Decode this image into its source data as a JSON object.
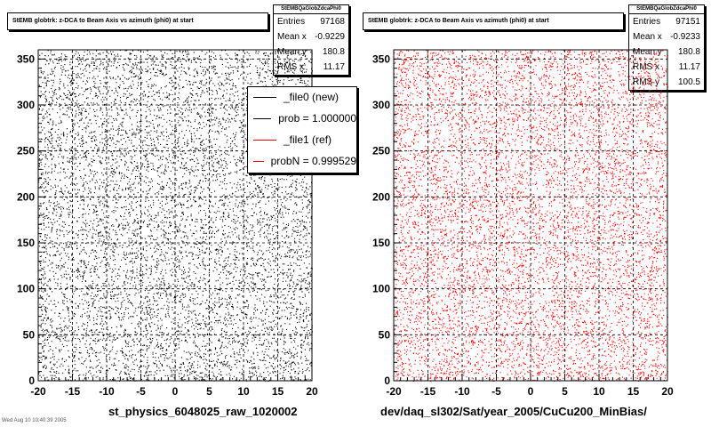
{
  "pads": [
    {
      "title": "StEMB globtrk: z-DCA to Beam Axis vs azimuth (phi0) at start",
      "xlabel": "st_physics_6048025_raw_1020002",
      "stats": {
        "name": "StEMBQaGlobZdcaPhi0",
        "rows": [
          {
            "label": "Entries",
            "value": "97168"
          },
          {
            "label": "Mean x",
            "value": "-0.9229"
          },
          {
            "label": "Mean y",
            "value": "180.8"
          },
          {
            "label": "RMS x",
            "value": "11.17"
          }
        ]
      },
      "marker_color": "#000000"
    },
    {
      "title": "StEMB globtrk: z-DCA to Beam Axis vs azimuth (phi0) at start",
      "xlabel": "dev/daq_sl302/Sat/year_2005/CuCu200_MinBias/",
      "stats": {
        "name": "StEMBQaGlobZdcaPhi0",
        "rows": [
          {
            "label": "Entries",
            "value": "97151"
          },
          {
            "label": "Mean x",
            "value": "-0.9233"
          },
          {
            "label": "Mean y",
            "value": "180.8"
          },
          {
            "label": "RMS x",
            "value": "11.17"
          },
          {
            "label": "RMS y",
            "value": "100.5"
          }
        ]
      },
      "marker_color": "#ff0000"
    }
  ],
  "legend": {
    "entries": [
      {
        "label": "_file0 (new)",
        "color": "#000000"
      },
      {
        "label": "prob = 1.000000",
        "color": "#000000"
      },
      {
        "label": "_file1 (ref)",
        "color": "#ff0000"
      },
      {
        "label": "probN = 0.999529",
        "color": "#ff0000"
      }
    ]
  },
  "footer": "Wed Aug 10 10:40:39 2005",
  "chart_data": [
    {
      "type": "scatter",
      "title": "StEMB globtrk: z-DCA to Beam Axis vs azimuth (phi0) at start",
      "xlabel": "st_physics_6048025_raw_1020002",
      "ylabel": "",
      "xlim": [
        -20,
        20
      ],
      "ylim": [
        0,
        360
      ],
      "x_ticks": [
        -20,
        -15,
        -10,
        -5,
        0,
        5,
        10,
        15,
        20
      ],
      "y_ticks": [
        0,
        50,
        100,
        150,
        200,
        250,
        300,
        350
      ],
      "grid": true,
      "series": [
        {
          "name": "_file0 (new)",
          "color": "#000000",
          "entries": 97168,
          "mean_x": -0.9229,
          "mean_y": 180.8,
          "rms_x": 11.17
        }
      ]
    },
    {
      "type": "scatter",
      "title": "StEMB globtrk: z-DCA to Beam Axis vs azimuth (phi0) at start",
      "xlabel": "dev/daq_sl302/Sat/year_2005/CuCu200_MinBias/",
      "ylabel": "",
      "xlim": [
        -20,
        20
      ],
      "ylim": [
        0,
        360
      ],
      "x_ticks": [
        -20,
        -15,
        -10,
        -5,
        0,
        5,
        10,
        15,
        20
      ],
      "y_ticks": [
        0,
        50,
        100,
        150,
        200,
        250,
        300,
        350
      ],
      "grid": true,
      "series": [
        {
          "name": "_file1 (ref)",
          "color": "#ff0000",
          "entries": 97151,
          "mean_x": -0.9233,
          "mean_y": 180.8,
          "rms_x": 11.17,
          "rms_y": 100.5
        }
      ]
    }
  ]
}
